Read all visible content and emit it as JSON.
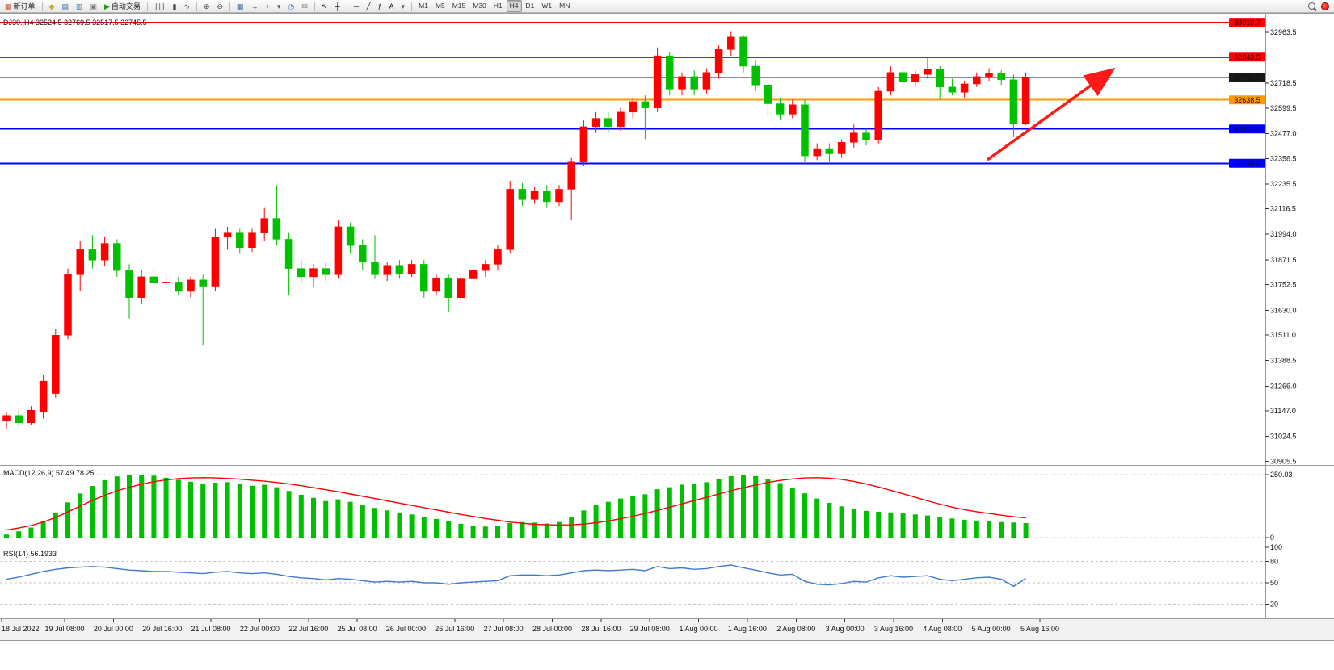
{
  "toolbar": {
    "items": [
      {
        "t": "btn",
        "name": "new-order-button",
        "glyph": "▦",
        "gc": "#cc5533",
        "label": "新订单"
      },
      {
        "t": "sep"
      },
      {
        "t": "icon",
        "name": "market-watch-icon",
        "glyph": "◆",
        "gc": "#d89f2b"
      },
      {
        "t": "icon",
        "name": "data-window-icon",
        "glyph": "▤",
        "gc": "#3a6ea5"
      },
      {
        "t": "icon",
        "name": "navigator-icon",
        "glyph": "▥",
        "gc": "#3a6ea5"
      },
      {
        "t": "icon",
        "name": "terminal-icon",
        "glyph": "▣",
        "gc": "#777777"
      },
      {
        "t": "btn",
        "name": "auto-trading-button",
        "glyph": "▶",
        "gc": "#18a018",
        "label": "自动交易"
      },
      {
        "t": "sep"
      },
      {
        "t": "icon",
        "name": "bar-chart-icon",
        "glyph": "∣∣∣",
        "gc": "#444444"
      },
      {
        "t": "icon",
        "name": "candlestick-chart-icon",
        "glyph": "▮",
        "gc": "#444444"
      },
      {
        "t": "icon",
        "name": "line-chart-icon",
        "glyph": "∿",
        "gc": "#444444"
      },
      {
        "t": "sep"
      },
      {
        "t": "icon",
        "name": "zoom-in-icon",
        "glyph": "⊕",
        "gc": "#444444"
      },
      {
        "t": "icon",
        "name": "zoom-out-icon",
        "glyph": "⊖",
        "gc": "#444444"
      },
      {
        "t": "sep"
      },
      {
        "t": "icon",
        "name": "tile-windows-icon",
        "glyph": "▦",
        "gc": "#3a6ea5"
      },
      {
        "t": "icon",
        "name": "auto-scroll-icon",
        "glyph": "→",
        "gc": "#444444"
      },
      {
        "t": "icon",
        "name": "indicators-add-icon",
        "glyph": "+",
        "gc": "#18a018"
      },
      {
        "t": "icon",
        "name": "indicator-dropdown-icon",
        "glyph": "▾",
        "gc": "#555555"
      },
      {
        "t": "icon",
        "name": "period-clock-icon",
        "glyph": "◷",
        "gc": "#3a6ea5"
      },
      {
        "t": "icon",
        "name": "templates-mail-icon",
        "glyph": "✉",
        "gc": "#777777"
      },
      {
        "t": "sep"
      },
      {
        "t": "icon",
        "name": "cursor-icon",
        "glyph": "↖",
        "gc": "#222222"
      },
      {
        "t": "icon",
        "name": "crosshair-icon",
        "glyph": "┼",
        "gc": "#222222"
      },
      {
        "t": "sep"
      },
      {
        "t": "icon",
        "name": "hline-tool-icon",
        "glyph": "─",
        "gc": "#222222"
      },
      {
        "t": "icon",
        "name": "trendline-tool-icon",
        "glyph": "╱",
        "gc": "#222222"
      },
      {
        "t": "icon",
        "name": "fibo-tool-icon",
        "glyph": "ƒ",
        "gc": "#222222"
      },
      {
        "t": "icon",
        "name": "text-tool-icon",
        "glyph": "A",
        "gc": "#222222"
      },
      {
        "t": "icon",
        "name": "shapes-dropdown-icon",
        "glyph": "▾",
        "gc": "#555555"
      },
      {
        "t": "sep"
      }
    ],
    "timeframes": [
      "M1",
      "M5",
      "M15",
      "M30",
      "H1",
      "H4",
      "D1",
      "W1",
      "MN"
    ],
    "active_timeframe": "H4"
  },
  "chart_data": {
    "type": "candlestick",
    "title": "DJ30.,H4 32524.5 32769.5 32517.5 32745.5",
    "title_color": "#b22222",
    "current_bar": {
      "open": 32524.5,
      "high": 32769.5,
      "low": 32517.5,
      "close": 32745.5
    },
    "up_color": "#ff0000",
    "down_color": "#00c000",
    "y_axis_ticks": [
      32963.5,
      32718.5,
      32599.5,
      32477.0,
      32356.5,
      32235.5,
      32116.5,
      31994.0,
      31871.5,
      31752.5,
      31630.0,
      31511.0,
      31388.5,
      31266.0,
      31147.0,
      31024.5,
      30905.5
    ],
    "levels": [
      {
        "price": 33010.7,
        "color": "#ff0000",
        "width": 1
      },
      {
        "price": 32843.5,
        "color": "#ff0000",
        "width": 2
      },
      {
        "price": 32745.5,
        "color": "#1a1a1a",
        "width": 1
      },
      {
        "price": 32638.5,
        "color": "#ff9900",
        "width": 2
      },
      {
        "price": 32499.2,
        "color": "#0000ff",
        "width": 2
      },
      {
        "price": 32334.4,
        "color": "#0000ff",
        "width": 2
      }
    ],
    "candles": [
      [
        31100,
        31140,
        31060,
        31125
      ],
      [
        31125,
        31150,
        31070,
        31090
      ],
      [
        31090,
        31170,
        31080,
        31150
      ],
      [
        31140,
        31320,
        31110,
        31290
      ],
      [
        31230,
        31540,
        31210,
        31510
      ],
      [
        31510,
        31830,
        31490,
        31800
      ],
      [
        31800,
        31960,
        31720,
        31920
      ],
      [
        31920,
        31990,
        31830,
        31870
      ],
      [
        31870,
        31980,
        31840,
        31950
      ],
      [
        31950,
        31970,
        31790,
        31820
      ],
      [
        31820,
        31850,
        31590,
        31690
      ],
      [
        31690,
        31820,
        31660,
        31790
      ],
      [
        31790,
        31830,
        31740,
        31760
      ],
      [
        31760,
        31800,
        31730,
        31765
      ],
      [
        31765,
        31790,
        31700,
        31720
      ],
      [
        31720,
        31790,
        31690,
        31775
      ],
      [
        31775,
        31800,
        31460,
        31745
      ],
      [
        31745,
        32020,
        31720,
        31980
      ],
      [
        31980,
        32030,
        31920,
        32000
      ],
      [
        32000,
        32020,
        31900,
        31930
      ],
      [
        31930,
        32020,
        31910,
        32000
      ],
      [
        32000,
        32120,
        31960,
        32070
      ],
      [
        32070,
        32230,
        31940,
        31970
      ],
      [
        31970,
        32000,
        31700,
        31830
      ],
      [
        31830,
        31870,
        31760,
        31790
      ],
      [
        31790,
        31850,
        31740,
        31830
      ],
      [
        31830,
        31860,
        31770,
        31800
      ],
      [
        31800,
        32060,
        31780,
        32030
      ],
      [
        32030,
        32050,
        31900,
        31940
      ],
      [
        31940,
        31970,
        31820,
        31860
      ],
      [
        31860,
        31990,
        31780,
        31800
      ],
      [
        31800,
        31860,
        31770,
        31845
      ],
      [
        31845,
        31870,
        31780,
        31805
      ],
      [
        31805,
        31870,
        31790,
        31850
      ],
      [
        31850,
        31870,
        31690,
        31720
      ],
      [
        31720,
        31800,
        31700,
        31785
      ],
      [
        31785,
        31800,
        31620,
        31690
      ],
      [
        31690,
        31800,
        31670,
        31780
      ],
      [
        31780,
        31840,
        31750,
        31820
      ],
      [
        31820,
        31870,
        31790,
        31850
      ],
      [
        31850,
        31940,
        31820,
        31920
      ],
      [
        31920,
        32250,
        31900,
        32210
      ],
      [
        32210,
        32240,
        32130,
        32160
      ],
      [
        32160,
        32220,
        32140,
        32200
      ],
      [
        32200,
        32230,
        32120,
        32150
      ],
      [
        32150,
        32230,
        32130,
        32210
      ],
      [
        32210,
        32360,
        32060,
        32340
      ],
      [
        32340,
        32540,
        32320,
        32510
      ],
      [
        32510,
        32580,
        32480,
        32550
      ],
      [
        32550,
        32580,
        32480,
        32510
      ],
      [
        32510,
        32600,
        32490,
        32580
      ],
      [
        32580,
        32650,
        32550,
        32630
      ],
      [
        32630,
        32660,
        32450,
        32600
      ],
      [
        32600,
        32890,
        32580,
        32850
      ],
      [
        32850,
        32870,
        32660,
        32690
      ],
      [
        32690,
        32770,
        32660,
        32750
      ],
      [
        32750,
        32780,
        32660,
        32690
      ],
      [
        32690,
        32790,
        32670,
        32770
      ],
      [
        32770,
        32900,
        32740,
        32880
      ],
      [
        32880,
        32965,
        32850,
        32940
      ],
      [
        32940,
        32950,
        32770,
        32800
      ],
      [
        32800,
        32830,
        32680,
        32710
      ],
      [
        32710,
        32740,
        32560,
        32620
      ],
      [
        32620,
        32650,
        32540,
        32570
      ],
      [
        32570,
        32640,
        32550,
        32615
      ],
      [
        32615,
        32640,
        32340,
        32370
      ],
      [
        32370,
        32430,
        32350,
        32405
      ],
      [
        32405,
        32430,
        32340,
        32380
      ],
      [
        32380,
        32450,
        32360,
        32435
      ],
      [
        32435,
        32520,
        32410,
        32480
      ],
      [
        32480,
        32500,
        32420,
        32445
      ],
      [
        32445,
        32700,
        32430,
        32680
      ],
      [
        32680,
        32800,
        32660,
        32770
      ],
      [
        32770,
        32790,
        32700,
        32725
      ],
      [
        32725,
        32780,
        32700,
        32760
      ],
      [
        32760,
        32845,
        32740,
        32785
      ],
      [
        32785,
        32800,
        32640,
        32700
      ],
      [
        32700,
        32740,
        32660,
        32675
      ],
      [
        32675,
        32730,
        32650,
        32715
      ],
      [
        32715,
        32770,
        32700,
        32750
      ],
      [
        32750,
        32790,
        32730,
        32765
      ],
      [
        32765,
        32780,
        32710,
        32735
      ],
      [
        32735,
        32760,
        32460,
        32525
      ],
      [
        32524.5,
        32769.5,
        32517.5,
        32745.5
      ]
    ],
    "time_labels": [
      "18 Jul 2022",
      "19 Jul 08:00",
      "20 Jul 00:00",
      "20 Jul 16:00",
      "21 Jul 08:00",
      "22 Jul 00:00",
      "22 Jul 16:00",
      "25 Jul 08:00",
      "26 Jul 00:00",
      "26 Jul 16:00",
      "27 Jul 08:00",
      "28 Jul 00:00",
      "28 Jul 16:00",
      "29 Jul 08:00",
      "1 Aug 00:00",
      "1 Aug 16:00",
      "2 Aug 08:00",
      "3 Aug 00:00",
      "3 Aug 16:00",
      "4 Aug 08:00",
      "5 Aug 00:00",
      "5 Aug 16:00"
    ],
    "macd": {
      "label": "MACD(12,26,9) 57.49 78.25",
      "scale_top": 250.03,
      "scale_top_label": "250.03",
      "zero_label": "0",
      "hist_color": "#00c000",
      "signal_color": "#ff0000",
      "hist": [
        12,
        25,
        40,
        65,
        100,
        140,
        175,
        205,
        228,
        243,
        250,
        250,
        246,
        238,
        230,
        222,
        212,
        218,
        220,
        212,
        206,
        210,
        200,
        185,
        170,
        158,
        145,
        152,
        142,
        130,
        118,
        108,
        100,
        92,
        82,
        74,
        64,
        55,
        48,
        44,
        46,
        58,
        62,
        60,
        56,
        62,
        80,
        108,
        128,
        142,
        155,
        165,
        172,
        192,
        200,
        210,
        214,
        220,
        232,
        244,
        250,
        244,
        232,
        216,
        198,
        176,
        155,
        138,
        124,
        115,
        106,
        103,
        100,
        96,
        92,
        88,
        82,
        76,
        71,
        68,
        64,
        62,
        60,
        57.49
      ],
      "signal": [
        30,
        38,
        48,
        62,
        80,
        102,
        125,
        148,
        168,
        186,
        200,
        212,
        222,
        229,
        234,
        237,
        238,
        237,
        235,
        232,
        228,
        224,
        219,
        213,
        206,
        198,
        190,
        182,
        173,
        164,
        155,
        146,
        137,
        128,
        119,
        110,
        101,
        92,
        84,
        76,
        69,
        62,
        57,
        53,
        51,
        50,
        51,
        54,
        59,
        66,
        75,
        85,
        96,
        108,
        121,
        134,
        147,
        160,
        173,
        186,
        198,
        209,
        219,
        227,
        233,
        237,
        238,
        236,
        231,
        223,
        213,
        201,
        188,
        174,
        160,
        146,
        133,
        121,
        111,
        103,
        96,
        89,
        83,
        78.25
      ]
    },
    "rsi": {
      "label": "RSI(14) 56.1933",
      "line_color": "#3e7bd0",
      "levels": [
        80,
        50,
        20
      ],
      "scale_labels": [
        "100",
        "80",
        "50",
        "20"
      ],
      "values": [
        55,
        58,
        62,
        66,
        69,
        71,
        72,
        73,
        72,
        70,
        68,
        67,
        66,
        66,
        65,
        64,
        63,
        65,
        66,
        64,
        63,
        64,
        62,
        59,
        57,
        56,
        54,
        56,
        55,
        53,
        51,
        52,
        51,
        52,
        50,
        50,
        48,
        50,
        51,
        52,
        53,
        60,
        61,
        61,
        60,
        61,
        64,
        67,
        68,
        67,
        68,
        69,
        67,
        73,
        70,
        71,
        69,
        70,
        73,
        75,
        71,
        68,
        64,
        61,
        62,
        52,
        48,
        47,
        49,
        52,
        51,
        57,
        60,
        58,
        59,
        60,
        55,
        53,
        55,
        57,
        58,
        55,
        45,
        56.19
      ]
    },
    "arrow": {
      "color": "#ff1a1a",
      "from": [
        1222,
        182
      ],
      "to": [
        1375,
        72
      ]
    }
  }
}
